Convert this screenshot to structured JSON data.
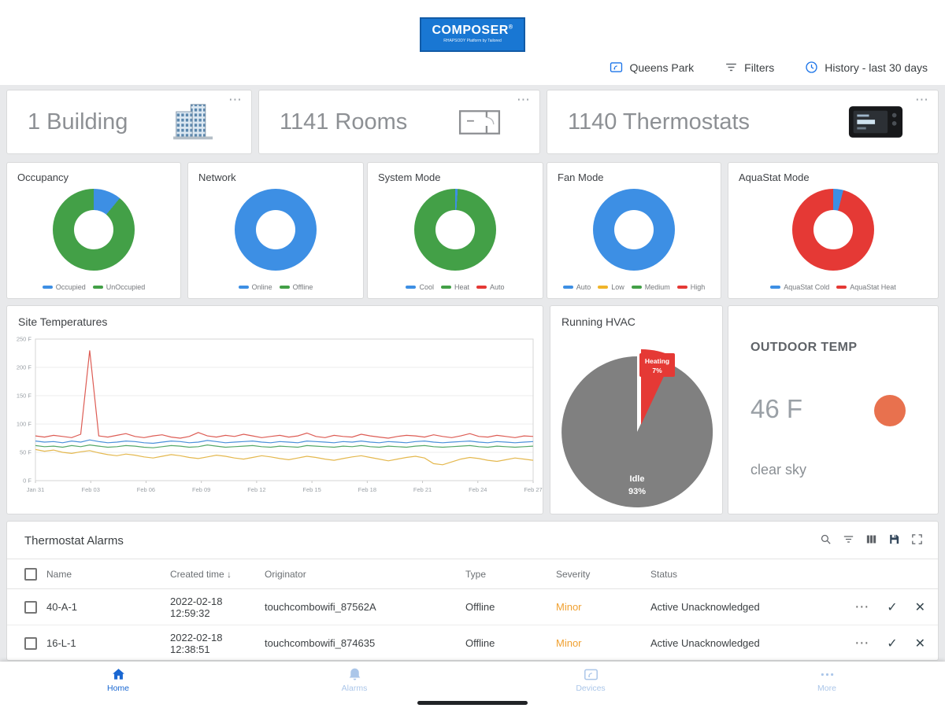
{
  "logo": {
    "title": "COMPOSER",
    "reg": "®",
    "subtitle": "RHAPSODY Platform by Tailored"
  },
  "header": {
    "site": "Queens Park",
    "filters": "Filters",
    "history": "History - last 30 days"
  },
  "stats": [
    {
      "label": "1 Building",
      "icon": "building-icon",
      "menu": "⋯"
    },
    {
      "label": "1141 Rooms",
      "icon": "rooms-icon",
      "menu": "⋯"
    },
    {
      "label": "1140 Thermostats",
      "icon": "thermostat-icon",
      "menu": "⋯"
    }
  ],
  "donut_cards": [
    {
      "title": "Occupancy",
      "slices": [
        {
          "label": "Occupied",
          "color": "#3d8fe4",
          "value": 11
        },
        {
          "label": "UnOccupied",
          "color": "#43a047",
          "value": 89
        }
      ]
    },
    {
      "title": "Network",
      "slices": [
        {
          "label": "Online",
          "color": "#3d8fe4",
          "value": 100
        },
        {
          "label": "Offline",
          "color": "#43a047",
          "value": 0
        }
      ]
    },
    {
      "title": "System Mode",
      "slices": [
        {
          "label": "Cool",
          "color": "#3d8fe4",
          "value": 1
        },
        {
          "label": "Heat",
          "color": "#43a047",
          "value": 99
        },
        {
          "label": "Auto",
          "color": "#e53935",
          "value": 0
        }
      ]
    },
    {
      "title": "Fan Mode",
      "slices": [
        {
          "label": "Auto",
          "color": "#3d8fe4",
          "value": 100
        },
        {
          "label": "Low",
          "color": "#f0b429",
          "value": 0
        },
        {
          "label": "Medium",
          "color": "#43a047",
          "value": 0
        },
        {
          "label": "High",
          "color": "#e53935",
          "value": 0
        }
      ]
    },
    {
      "title": "AquaStat Mode",
      "slices": [
        {
          "label": "AquaStat Cold",
          "color": "#3d8fe4",
          "value": 4
        },
        {
          "label": "AquaStat Heat",
          "color": "#e53935",
          "value": 96
        }
      ]
    }
  ],
  "chart_data": [
    {
      "type": "line",
      "title": "Site Temperatures",
      "ylabel_ticks": [
        "0 F",
        "50 F",
        "100 F",
        "150 F",
        "200 F",
        "250 F"
      ],
      "ylim": [
        0,
        250
      ],
      "x_ticks": [
        "Jan 31",
        "Feb 03",
        "Feb 06",
        "Feb 09",
        "Feb 12",
        "Feb 15",
        "Feb 18",
        "Feb 21",
        "Feb 24",
        "Feb 27"
      ],
      "grid": true,
      "series": [
        {
          "name": "red",
          "color": "#dd5c54",
          "values": [
            79,
            77,
            80,
            78,
            76,
            82,
            230,
            79,
            77,
            80,
            83,
            78,
            76,
            79,
            81,
            77,
            75,
            78,
            85,
            79,
            77,
            80,
            78,
            82,
            79,
            76,
            78,
            80,
            77,
            79,
            84,
            78,
            76,
            80,
            78,
            77,
            82,
            79,
            77,
            75,
            78,
            80,
            79,
            77,
            81,
            78,
            76,
            79,
            83,
            78,
            77,
            80,
            78,
            76,
            79,
            78
          ]
        },
        {
          "name": "blue",
          "color": "#4a90d9",
          "values": [
            70,
            68,
            69,
            67,
            70,
            68,
            72,
            69,
            67,
            68,
            70,
            69,
            67,
            66,
            68,
            70,
            69,
            67,
            68,
            71,
            69,
            67,
            68,
            69,
            70,
            68,
            67,
            69,
            68,
            67,
            70,
            69,
            68,
            67,
            69,
            68,
            70,
            68,
            67,
            69,
            68,
            67,
            69,
            70,
            68,
            67,
            68,
            69,
            70,
            68,
            67,
            69,
            68,
            67,
            68,
            69
          ]
        },
        {
          "name": "green",
          "color": "#55a868",
          "values": [
            62,
            60,
            61,
            59,
            62,
            60,
            63,
            61,
            59,
            60,
            62,
            61,
            59,
            58,
            60,
            62,
            61,
            59,
            60,
            63,
            61,
            59,
            60,
            61,
            62,
            60,
            59,
            61,
            60,
            59,
            62,
            61,
            60,
            59,
            61,
            60,
            62,
            60,
            59,
            61,
            60,
            59,
            61,
            62,
            60,
            59,
            60,
            61,
            62,
            60,
            59,
            61,
            60,
            59,
            60,
            61
          ]
        },
        {
          "name": "yellow",
          "color": "#e4b84e",
          "values": [
            55,
            52,
            54,
            50,
            48,
            51,
            53,
            49,
            46,
            44,
            47,
            45,
            42,
            40,
            43,
            46,
            44,
            41,
            39,
            42,
            45,
            43,
            40,
            38,
            41,
            44,
            42,
            39,
            37,
            40,
            43,
            41,
            38,
            36,
            39,
            42,
            44,
            41,
            38,
            35,
            38,
            41,
            43,
            40,
            30,
            28,
            33,
            38,
            41,
            39,
            36,
            34,
            37,
            40,
            38,
            36
          ]
        }
      ]
    },
    {
      "type": "pie",
      "title": "Running HVAC",
      "slices": [
        {
          "label": "Idle",
          "pct": 93,
          "color": "#808080"
        },
        {
          "label": "Heating",
          "pct": 7,
          "color": "#e53935"
        }
      ]
    }
  ],
  "outdoor": {
    "title": "OUTDOOR TEMP",
    "temp": "46 F",
    "condition": "clear sky",
    "sun_color": "#e8714e"
  },
  "alarms_table": {
    "title": "Thermostat Alarms",
    "toolbar_icons": [
      "search-icon",
      "filter-icon",
      "columns-icon",
      "save-icon",
      "fullscreen-icon"
    ],
    "columns": [
      "Name",
      "Created time",
      "Originator",
      "Type",
      "Severity",
      "Status"
    ],
    "sort_column": "Created time",
    "sort_arrow": "↓",
    "rows": [
      {
        "name": "40-A-1",
        "created": "2022-02-18 12:59:32",
        "originator": "touchcombowifi_87562A",
        "type": "Offline",
        "severity": "Minor",
        "status": "Active Unacknowledged"
      },
      {
        "name": "16-L-1",
        "created": "2022-02-18 12:38:51",
        "originator": "touchcombowifi_874635",
        "type": "Offline",
        "severity": "Minor",
        "status": "Active Unacknowledged"
      }
    ],
    "row_actions": [
      "⋯",
      "✓",
      "✕"
    ]
  },
  "nav": [
    {
      "label": "Home",
      "icon": "home-icon",
      "active": true
    },
    {
      "label": "Alarms",
      "icon": "bell-icon",
      "active": false
    },
    {
      "label": "Devices",
      "icon": "devices-icon",
      "active": false
    },
    {
      "label": "More",
      "icon": "more-icon",
      "active": false
    }
  ],
  "colors": {
    "accent": "#1a73e8",
    "severity_minor": "#f0a030",
    "active_nav": "#1967d2"
  }
}
